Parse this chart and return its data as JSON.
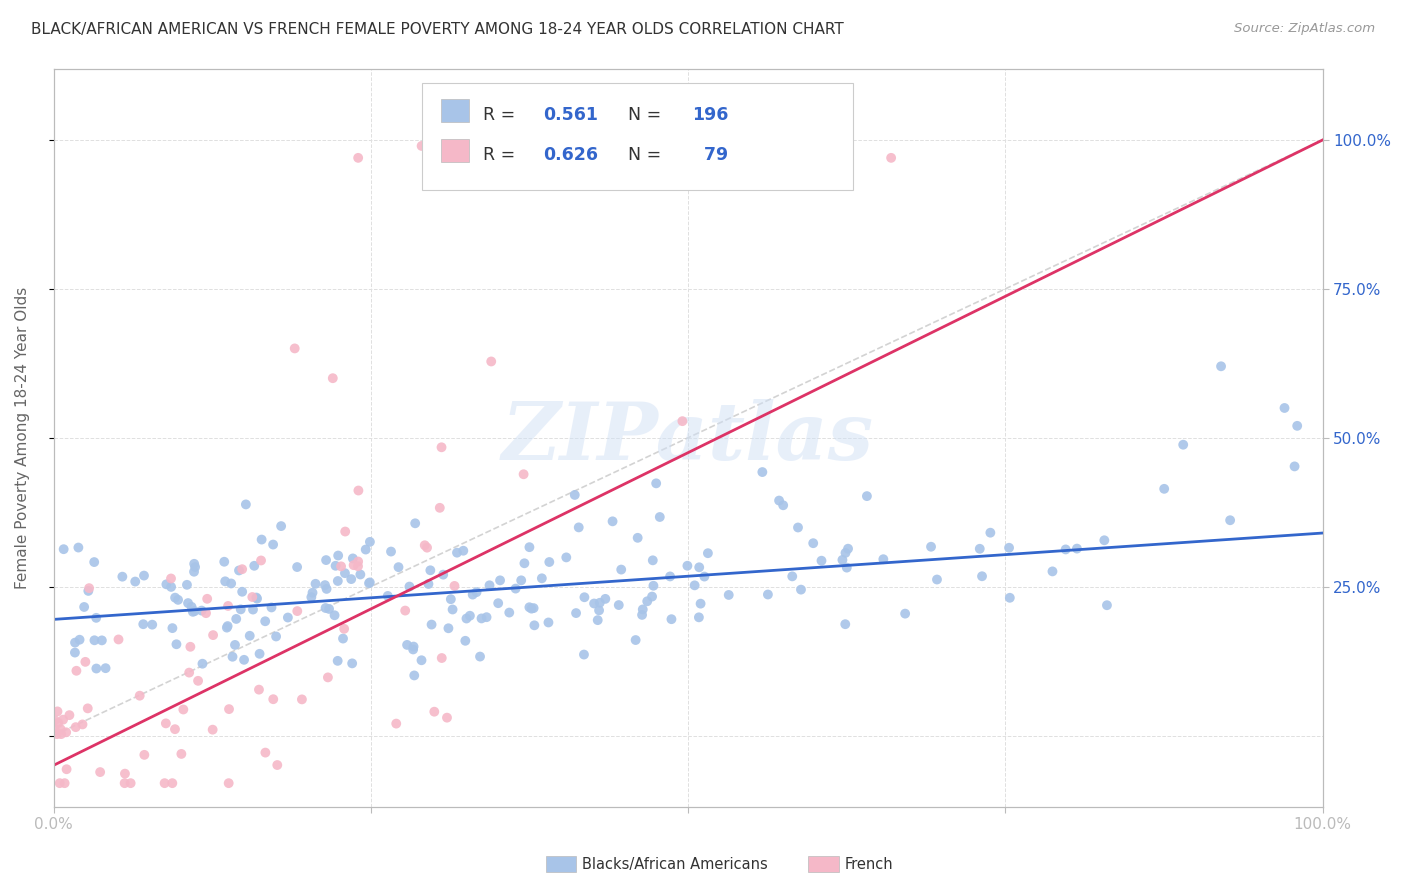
{
  "title": "BLACK/AFRICAN AMERICAN VS FRENCH FEMALE POVERTY AMONG 18-24 YEAR OLDS CORRELATION CHART",
  "source": "Source: ZipAtlas.com",
  "ylabel": "Female Poverty Among 18-24 Year Olds",
  "blue_R": 0.561,
  "blue_N": 196,
  "pink_R": 0.626,
  "pink_N": 79,
  "blue_color": "#a8c4e8",
  "pink_color": "#f5b8c8",
  "blue_line_color": "#3366cc",
  "pink_line_color": "#dd3366",
  "diagonal_color": "#c8c8c8",
  "watermark": "ZIPatlas",
  "title_color": "#333333",
  "axis_label_color": "#666666",
  "tick_color": "#3366cc",
  "background_color": "#ffffff",
  "grid_color": "#e0e0e0",
  "blue_seed": 42,
  "pink_seed": 99,
  "blue_line_intercept": 0.195,
  "blue_line_slope": 0.145,
  "pink_line_intercept": -0.05,
  "pink_line_slope": 1.05
}
